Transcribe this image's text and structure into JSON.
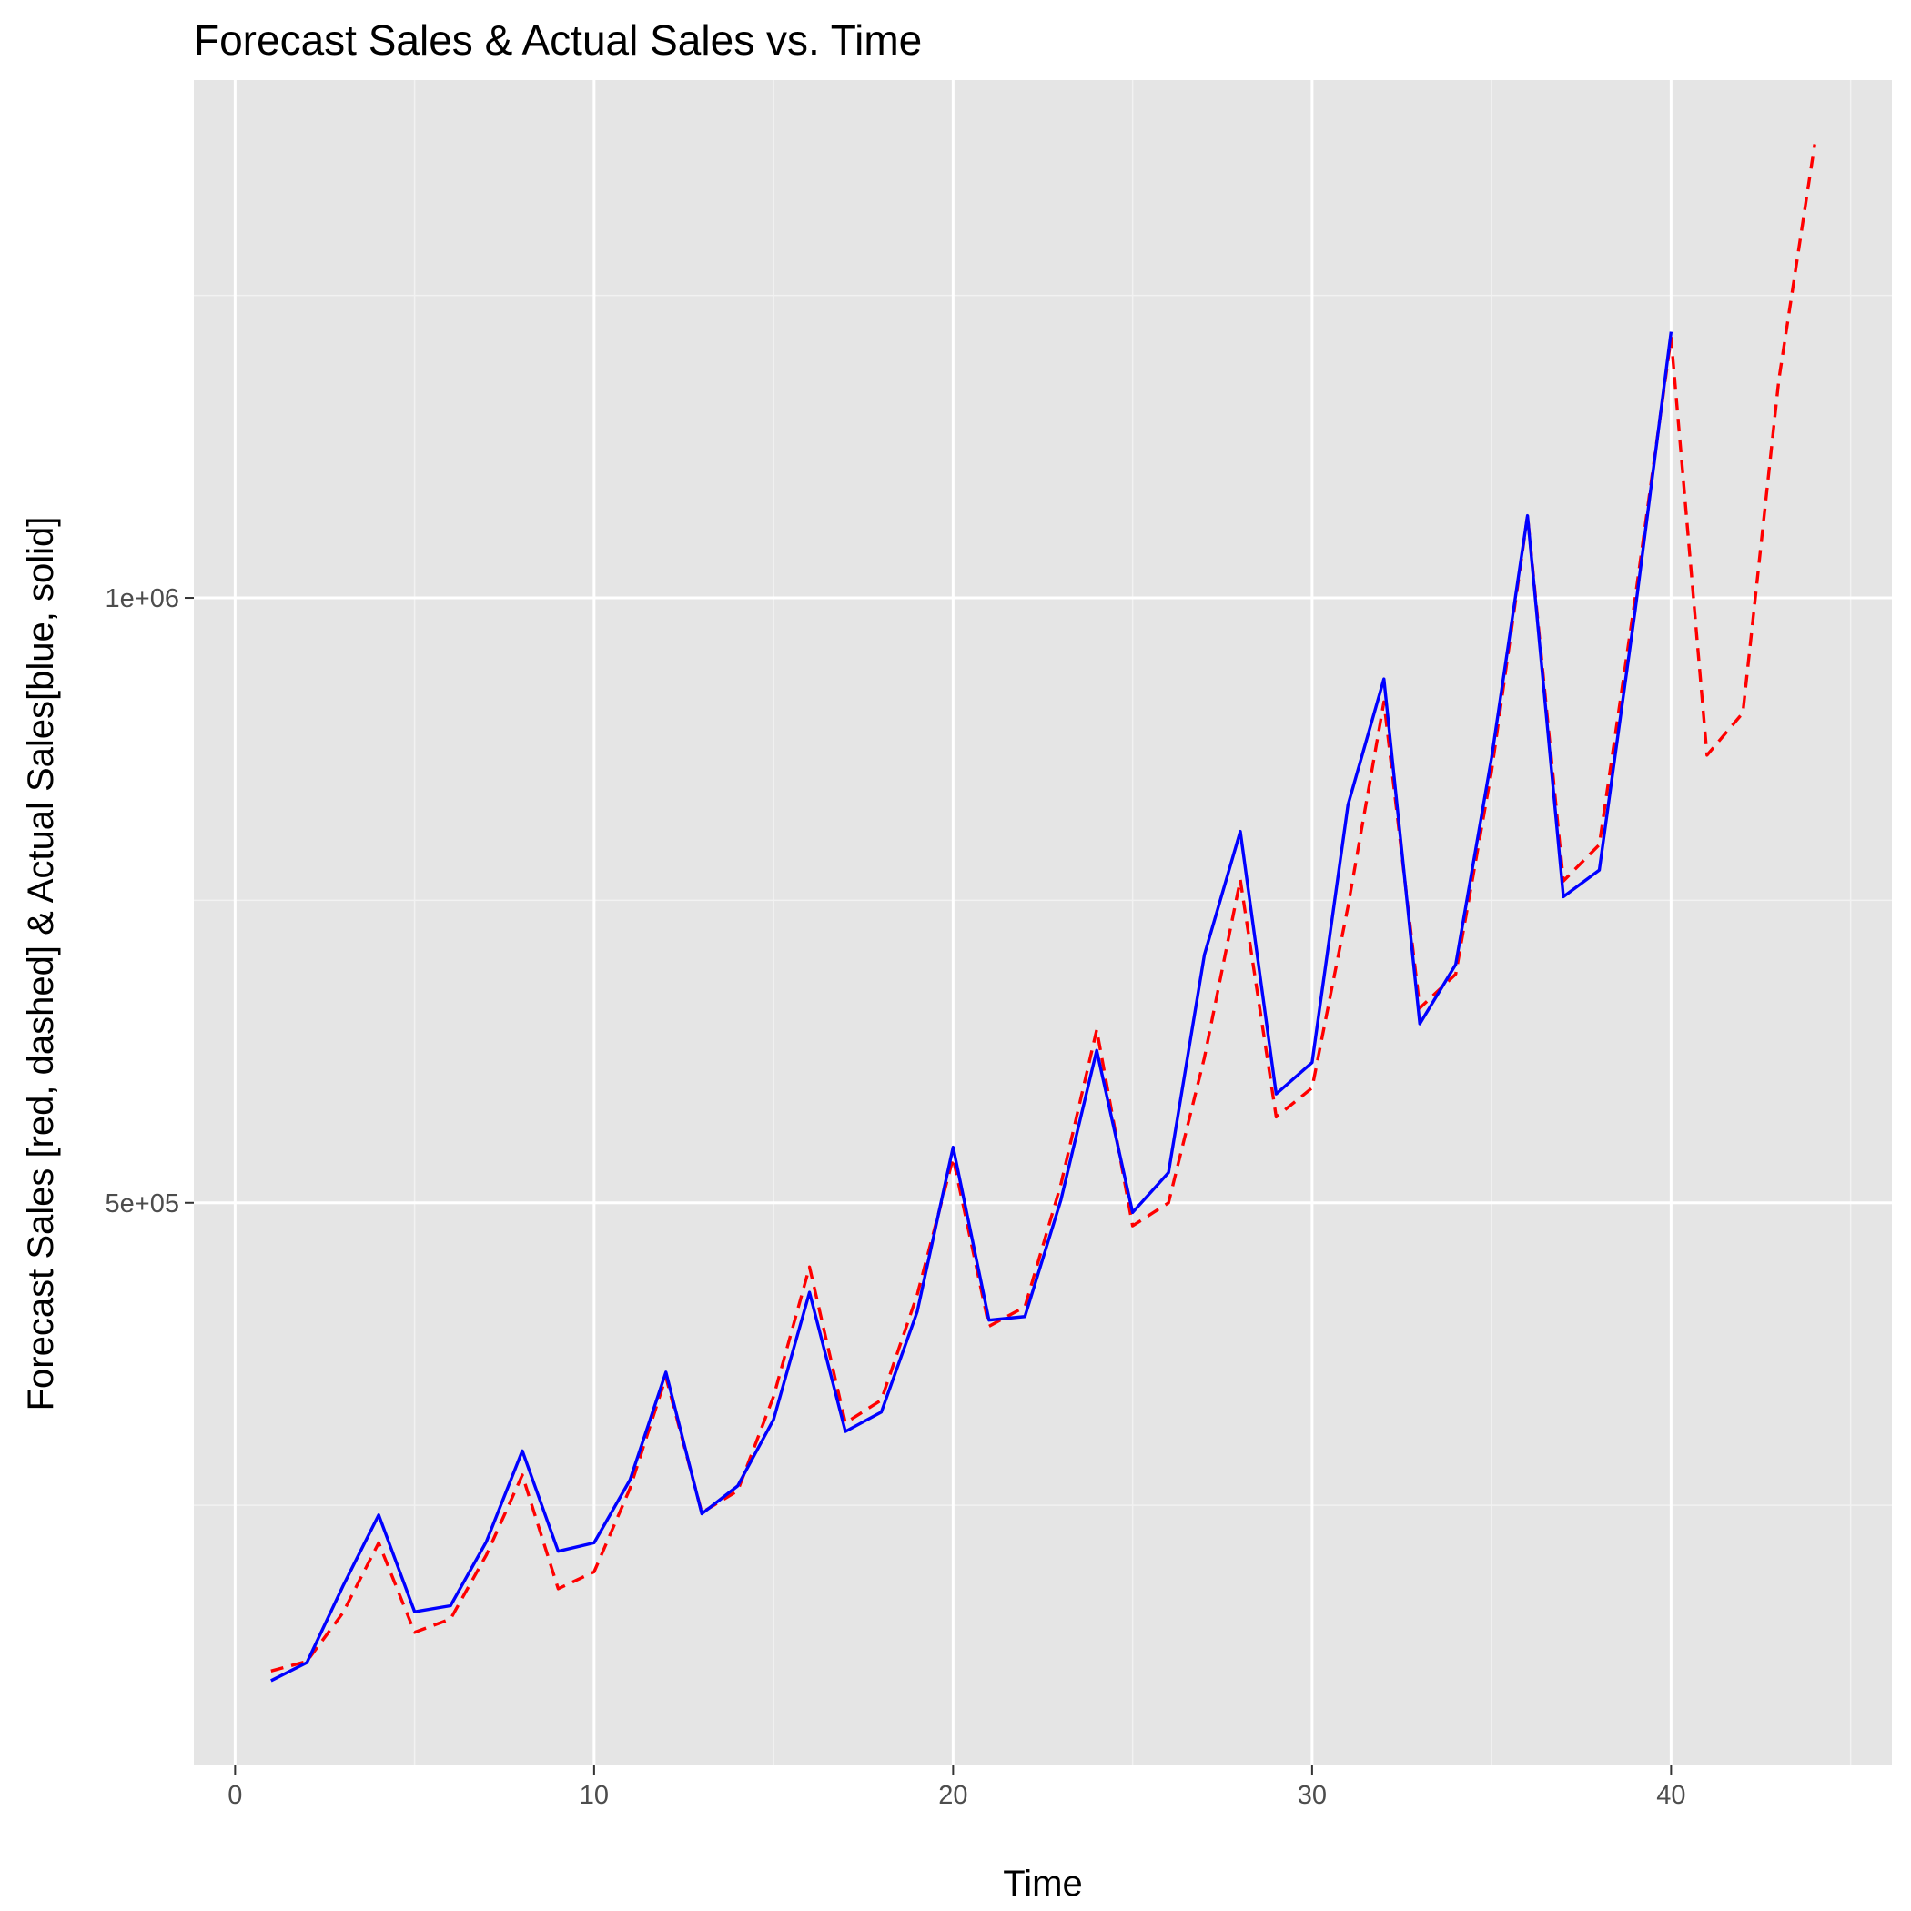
{
  "chart_data": {
    "type": "line",
    "title": "Forecast Sales & Actual Sales vs. Time",
    "xlabel": "Time",
    "ylabel": "Forecast Sales [red, dashed] & Actual Sales[blue, solid]",
    "xlim": [
      -1.15,
      46.15
    ],
    "ylim": [
      35000,
      1428000
    ],
    "x_ticks": [
      0,
      10,
      20,
      30,
      40
    ],
    "x_tick_labels": [
      "0",
      "10",
      "20",
      "30",
      "40"
    ],
    "x_minor_ticks": [
      5,
      15,
      25,
      35,
      45
    ],
    "y_ticks": [
      500000,
      1000000
    ],
    "y_tick_labels": [
      "5e+05",
      "1e+06"
    ],
    "y_minor_ticks": [
      250000,
      750000,
      1250000
    ],
    "grid": true,
    "legend": "none",
    "series": [
      {
        "name": "Forecast Sales",
        "color": "#ff0000",
        "style": "dashed",
        "x": [
          1,
          2,
          3,
          4,
          5,
          6,
          7,
          8,
          9,
          10,
          11,
          12,
          13,
          14,
          15,
          16,
          17,
          18,
          19,
          20,
          21,
          22,
          23,
          24,
          25,
          26,
          27,
          28,
          29,
          30,
          31,
          32,
          33,
          34,
          35,
          36,
          37,
          38,
          39,
          40,
          41,
          42,
          43,
          44
        ],
        "values": [
          113000,
          121000,
          161000,
          219000,
          145000,
          156000,
          209000,
          275000,
          181000,
          195000,
          264000,
          356000,
          244000,
          262000,
          340000,
          447000,
          318000,
          337000,
          424000,
          537000,
          398000,
          414000,
          515000,
          643000,
          481000,
          500000,
          620000,
          767000,
          571000,
          595000,
          745000,
          914000,
          661000,
          689000,
          857000,
          1068000,
          766000,
          796000,
          1000000,
          1215000,
          870000,
          905000,
          1180000,
          1375000
        ]
      },
      {
        "name": "Actual Sales",
        "color": "#0000ff",
        "style": "solid",
        "x": [
          1,
          2,
          3,
          4,
          5,
          6,
          7,
          8,
          9,
          10,
          11,
          12,
          13,
          14,
          15,
          16,
          17,
          18,
          19,
          20,
          21,
          22,
          23,
          24,
          25,
          26,
          27,
          28,
          29,
          30,
          31,
          32,
          33,
          34,
          35,
          36,
          37,
          38,
          39,
          40
        ],
        "values": [
          105000,
          120000,
          183000,
          242000,
          162000,
          167000,
          220000,
          295000,
          212000,
          219000,
          271000,
          360000,
          243000,
          266000,
          321000,
          426000,
          311000,
          327000,
          410000,
          546000,
          403000,
          406000,
          502000,
          626000,
          492000,
          525000,
          705000,
          807000,
          590000,
          616000,
          829000,
          933000,
          648000,
          697000,
          868000,
          1068000,
          753000,
          775000,
          990000,
          1220000
        ]
      }
    ]
  }
}
